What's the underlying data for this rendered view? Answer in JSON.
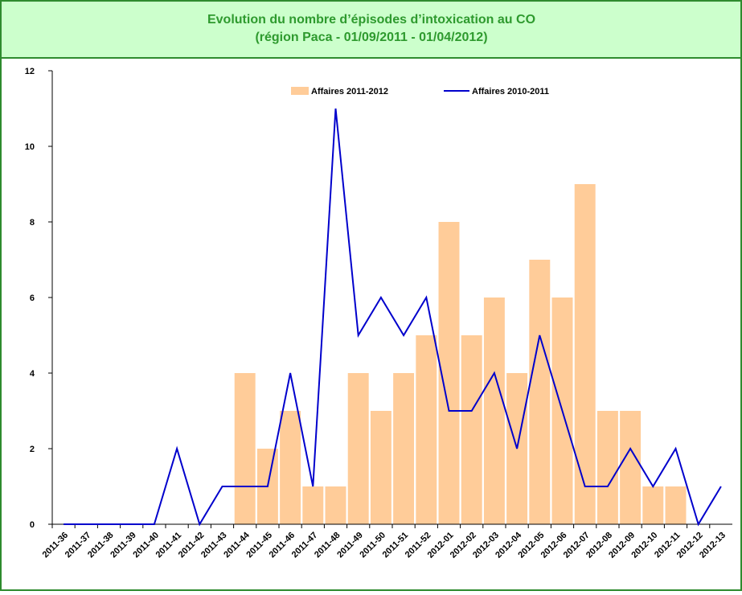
{
  "chart_data": {
    "type": "bar_line",
    "title": "Evolution du nombre d’épisodes d’intoxication au CO",
    "subtitle": "(région Paca - 01/09/2011 - 01/04/2012)",
    "categories": [
      "2011-36",
      "2011-37",
      "2011-38",
      "2011-39",
      "2011-40",
      "2011-41",
      "2011-42",
      "2011-43",
      "2011-44",
      "2011-45",
      "2011-46",
      "2011-47",
      "2011-48",
      "2011-49",
      "2011-50",
      "2011-51",
      "2011-52",
      "2012-01",
      "2012-02",
      "2012-03",
      "2012-04",
      "2012-05",
      "2012-06",
      "2012-07",
      "2012-08",
      "2012-09",
      "2012-10",
      "2012-11",
      "2012-12",
      "2012-13"
    ],
    "series": [
      {
        "name": "Affaires 2011-2012",
        "kind": "bar",
        "color": "#ffcc99",
        "values": [
          0,
          0,
          0,
          0,
          0,
          0,
          0,
          0,
          4,
          2,
          3,
          1,
          1,
          4,
          3,
          4,
          5,
          8,
          5,
          6,
          4,
          7,
          6,
          9,
          3,
          3,
          1,
          1,
          0,
          0
        ]
      },
      {
        "name": "Affaires 2010-2011",
        "kind": "line",
        "color": "#0000cc",
        "values": [
          0,
          0,
          0,
          0,
          0,
          2,
          0,
          1,
          1,
          1,
          4,
          1,
          11,
          5,
          6,
          5,
          6,
          3,
          3,
          4,
          2,
          5,
          3,
          1,
          1,
          2,
          1,
          2,
          0,
          1
        ]
      }
    ],
    "ylim": [
      0,
      12
    ],
    "yticks": [
      0,
      2,
      4,
      6,
      8,
      10,
      12
    ],
    "legend": "top"
  }
}
